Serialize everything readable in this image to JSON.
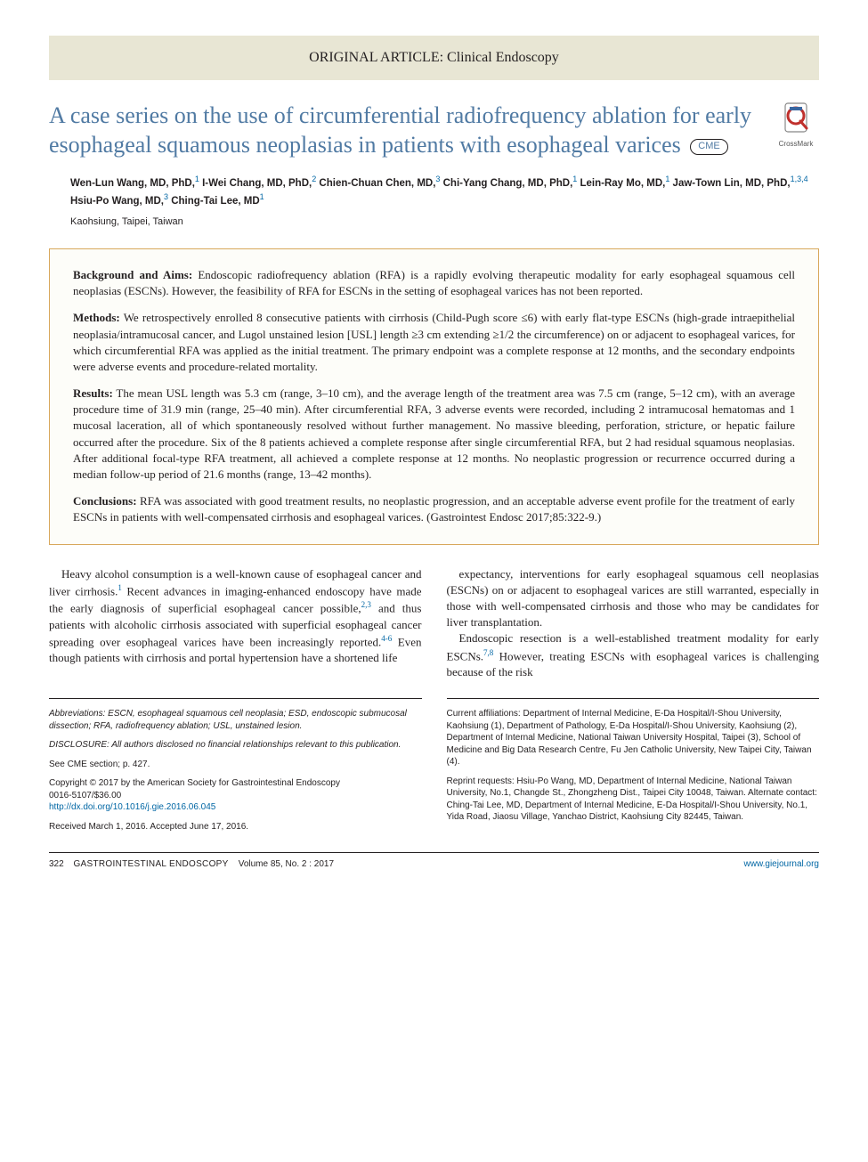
{
  "category": "ORIGINAL ARTICLE: Clinical Endoscopy",
  "title": "A case series on the use of circumferential radiofrequency ablation for early esophageal squamous neoplasias in patients with esophageal varices",
  "cme_label": "CME",
  "crossmark_label": "CrossMark",
  "authors_html": "Wen-Lun Wang, MD, PhD,<sup>1</sup> I-Wei Chang, MD, PhD,<sup>2</sup> Chien-Chuan Chen, MD,<sup>3</sup> Chi-Yang Chang, MD, PhD,<sup>1</sup> Lein-Ray Mo, MD,<sup>1</sup> Jaw-Town Lin, MD, PhD,<sup>1,3,4</sup> Hsiu-Po Wang, MD,<sup>3</sup> Ching-Tai Lee, MD<sup>1</sup>",
  "location": "Kaohsiung, Taipei, Taiwan",
  "abstract": {
    "background": {
      "head": "Background and Aims:",
      "text": " Endoscopic radiofrequency ablation (RFA) is a rapidly evolving therapeutic modality for early esophageal squamous cell neoplasias (ESCNs). However, the feasibility of RFA for ESCNs in the setting of esophageal varices has not been reported."
    },
    "methods": {
      "head": "Methods:",
      "text": " We retrospectively enrolled 8 consecutive patients with cirrhosis (Child-Pugh score ≤6) with early flat-type ESCNs (high-grade intraepithelial neoplasia/intramucosal cancer, and Lugol unstained lesion [USL] length ≥3 cm extending ≥1/2 the circumference) on or adjacent to esophageal varices, for which circumferential RFA was applied as the initial treatment. The primary endpoint was a complete response at 12 months, and the secondary endpoints were adverse events and procedure-related mortality."
    },
    "results": {
      "head": "Results:",
      "text": " The mean USL length was 5.3 cm (range, 3–10 cm), and the average length of the treatment area was 7.5 cm (range, 5–12 cm), with an average procedure time of 31.9 min (range, 25–40 min). After circumferential RFA, 3 adverse events were recorded, including 2 intramucosal hematomas and 1 mucosal laceration, all of which spontaneously resolved without further management. No massive bleeding, perforation, stricture, or hepatic failure occurred after the procedure. Six of the 8 patients achieved a complete response after single circumferential RFA, but 2 had residual squamous neoplasias. After additional focal-type RFA treatment, all achieved a complete response at 12 months. No neoplastic progression or recurrence occurred during a median follow-up period of 21.6 months (range, 13–42 months)."
    },
    "conclusions": {
      "head": "Conclusions:",
      "text": " RFA was associated with good treatment results, no neoplastic progression, and an acceptable adverse event profile for the treatment of early ESCNs in patients with well-compensated cirrhosis and esophageal varices. (Gastrointest Endosc 2017;85:322-9.)"
    }
  },
  "body": {
    "p1": "Heavy alcohol consumption is a well-known cause of esophageal cancer and liver cirrhosis.<sup>1</sup> Recent advances in imaging-enhanced endoscopy have made the early diagnosis of superficial esophageal cancer possible,<sup>2,3</sup> and thus patients with alcoholic cirrhosis associated with superficial esophageal cancer spreading over esophageal varices have been increasingly reported.<sup>4-6</sup> Even though patients with cirrhosis and portal hypertension have a shortened life",
    "p2": "expectancy, interventions for early esophageal squamous cell neoplasias (ESCNs) on or adjacent to esophageal varices are still warranted, especially in those with well-compensated cirrhosis and those who may be candidates for liver transplantation.",
    "p3": "Endoscopic resection is a well-established treatment modality for early ESCNs.<sup>7,8</sup> However, treating ESCNs with esophageal varices is challenging because of the risk"
  },
  "footnotes": {
    "left": {
      "abbrev": "Abbreviations: ESCN, esophageal squamous cell neoplasia; ESD, endoscopic submucosal dissection; RFA, radiofrequency ablation; USL, unstained lesion.",
      "disclosure": "DISCLOSURE: All authors disclosed no financial relationships relevant to this publication.",
      "cme_ref": "See CME section; p. 427.",
      "copyright": "Copyright © 2017 by the American Society for Gastrointestinal Endoscopy",
      "issn": "0016-5107/$36.00",
      "doi": "http://dx.doi.org/10.1016/j.gie.2016.06.045",
      "received": "Received March 1, 2016. Accepted June 17, 2016."
    },
    "right": {
      "affiliations": "Current affiliations: Department of Internal Medicine, E-Da Hospital/I-Shou University, Kaohsiung (1), Department of Pathology, E-Da Hospital/I-Shou University, Kaohsiung (2), Department of Internal Medicine, National Taiwan University Hospital, Taipei (3), School of Medicine and Big Data Research Centre, Fu Jen Catholic University, New Taipei City, Taiwan (4).",
      "reprint": "Reprint requests: Hsiu-Po Wang, MD, Department of Internal Medicine, National Taiwan University, No.1, Changde St., Zhongzheng Dist., Taipei City 10048, Taiwan. Alternate contact: Ching-Tai Lee, MD, Department of Internal Medicine, E-Da Hospital/I-Shou University, No.1, Yida Road, Jiaosu Village, Yanchao District, Kaohsiung City 82445, Taiwan."
    }
  },
  "footer": {
    "page": "322",
    "journal": "GASTROINTESTINAL ENDOSCOPY",
    "volume": "Volume 85, No. 2 : 2017",
    "url": "www.giejournal.org"
  },
  "colors": {
    "band_bg": "#e8e6d4",
    "title_color": "#507aa3",
    "abstract_border": "#d8a85c",
    "link_color": "#0066a4"
  }
}
